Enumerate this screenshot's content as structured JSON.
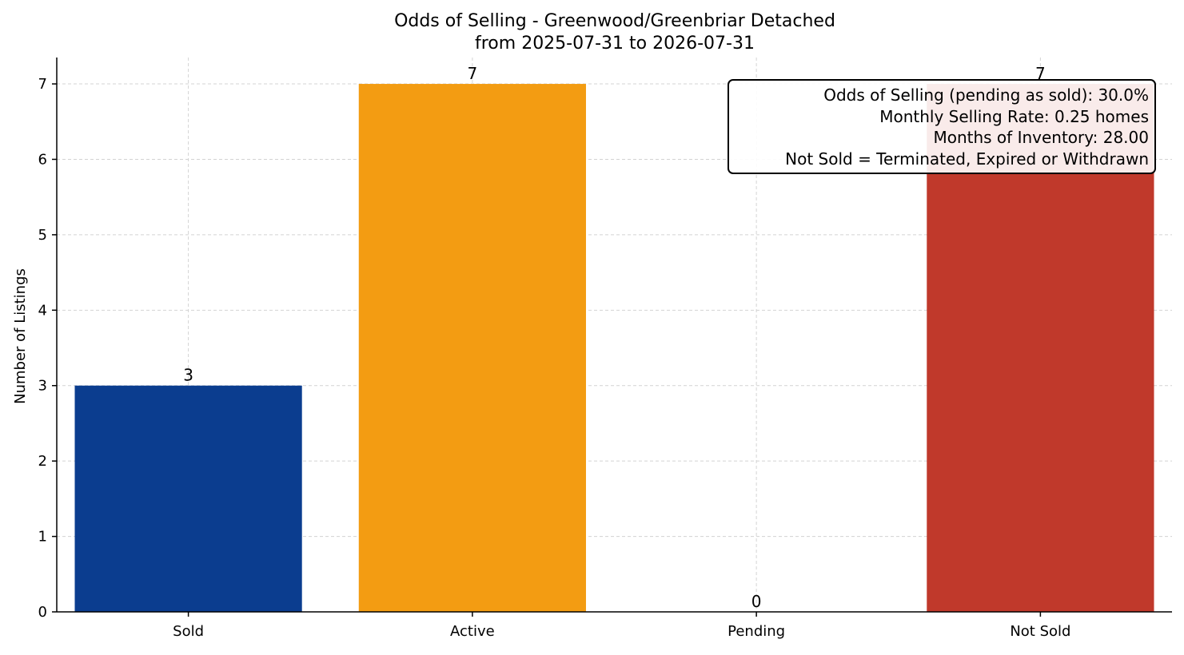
{
  "chart_data": {
    "type": "bar",
    "title": "Odds of Selling - Greenwood/Greenbriar Detached",
    "subtitle": "from 2025-07-31 to 2026-07-31",
    "xlabel": "",
    "ylabel": "Number of Listings",
    "categories": [
      "Sold",
      "Active",
      "Pending",
      "Not Sold"
    ],
    "values": [
      3,
      7,
      0,
      7
    ],
    "bar_colors": [
      "#0b3d8f",
      "#f39c12",
      "#8e44ad",
      "#c0392b"
    ],
    "ylim": [
      0,
      7.35
    ],
    "yticks": [
      0,
      1,
      2,
      3,
      4,
      5,
      6,
      7
    ],
    "grid": true,
    "annotation": {
      "position": "top-right",
      "lines": [
        "Odds of Selling (pending as sold): 30.0%",
        "Monthly Selling Rate: 0.25 homes",
        "Months of Inventory: 28.00",
        "Not Sold = Terminated, Expired or Withdrawn"
      ]
    }
  }
}
